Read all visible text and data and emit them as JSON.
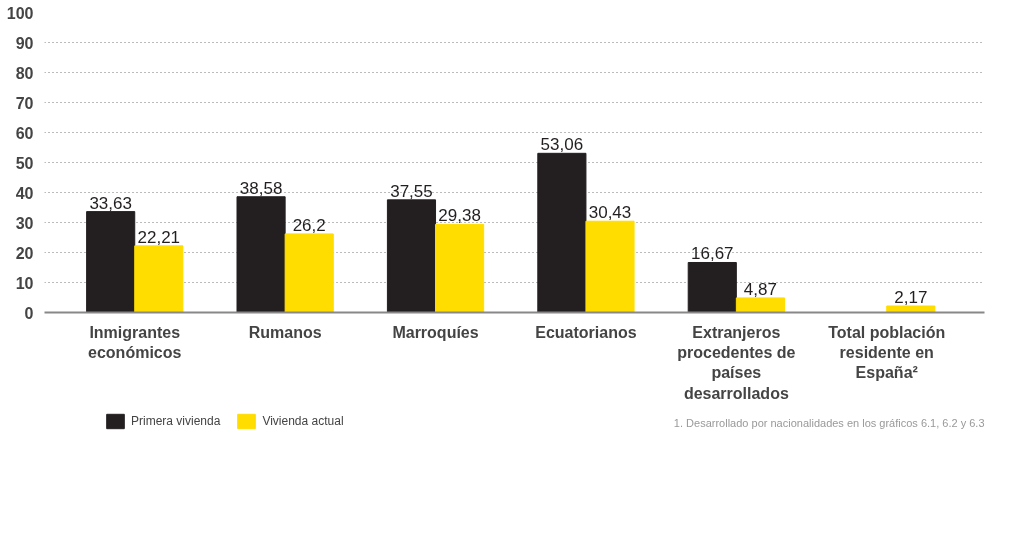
{
  "chart_data": {
    "type": "bar",
    "categories": [
      "Inmigrantes económicos",
      "Rumanos",
      "Marroquíes",
      "Ecuatorianos",
      "Extranjeros procedentes de países desarrollados",
      "Total población residente en España²"
    ],
    "series": [
      {
        "name": "Primera vivienda",
        "color": "#231f20",
        "values": [
          33.63,
          38.58,
          37.55,
          53.06,
          16.67,
          null
        ],
        "value_labels": [
          "33,63",
          "38,58",
          "37,55",
          "53,06",
          "16,67",
          null
        ]
      },
      {
        "name": "Vivienda actual",
        "color": "#ffdd00",
        "values": [
          22.21,
          26.2,
          29.38,
          30.43,
          4.87,
          2.17
        ],
        "value_labels": [
          "22,21",
          "26,2",
          "29,38",
          "30,43",
          "4,87",
          "2,17"
        ]
      }
    ],
    "ylim": [
      0,
      100
    ],
    "yticks": [
      0,
      10,
      20,
      30,
      40,
      50,
      60,
      70,
      80,
      90,
      100
    ],
    "grid": "y",
    "legend": "bottom left",
    "annotations": [
      "1. Desarrollado por nacionalidades en los gráficos 6.1, 6.2 y 6.3"
    ]
  }
}
